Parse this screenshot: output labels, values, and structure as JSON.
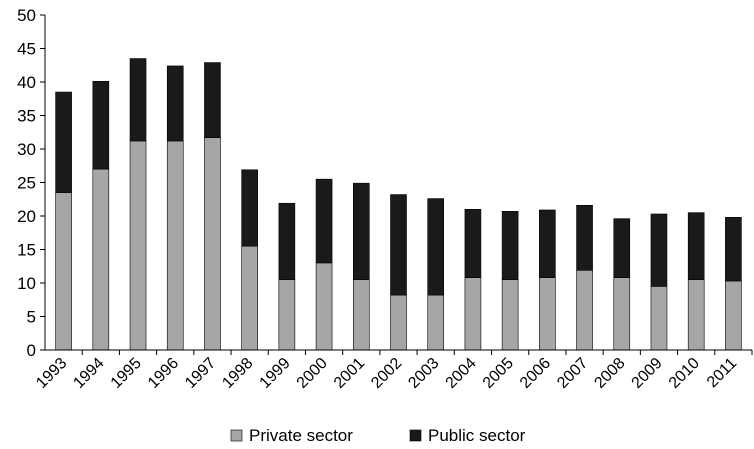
{
  "chart_data": {
    "type": "bar",
    "stacked": true,
    "categories": [
      "1993",
      "1994",
      "1995",
      "1996",
      "1997",
      "1998",
      "1999",
      "2000",
      "2001",
      "2002",
      "2003",
      "2004",
      "2005",
      "2006",
      "2007",
      "2008",
      "2009",
      "2010",
      "2011"
    ],
    "series": [
      {
        "name": "Private sector",
        "color": "#a6a6a6",
        "values": [
          23.5,
          27.0,
          31.2,
          31.2,
          31.7,
          15.5,
          10.5,
          13.0,
          10.5,
          8.2,
          8.2,
          10.8,
          10.5,
          10.8,
          11.9,
          10.8,
          9.5,
          10.5,
          10.3
        ]
      },
      {
        "name": "Public sector",
        "color": "#1a1a1a",
        "values": [
          15.0,
          13.1,
          12.3,
          11.2,
          11.2,
          11.4,
          11.4,
          12.5,
          14.4,
          15.0,
          14.4,
          10.2,
          10.2,
          10.1,
          9.7,
          8.8,
          10.8,
          10.0,
          9.5
        ]
      }
    ],
    "ylim": [
      0,
      50
    ],
    "yticks": [
      "0",
      "5",
      "10",
      "15",
      "20",
      "25",
      "30",
      "35",
      "40",
      "45",
      "50"
    ],
    "title": "",
    "xlabel": "",
    "ylabel": "",
    "legend_position": "bottom-center",
    "grid": false
  }
}
